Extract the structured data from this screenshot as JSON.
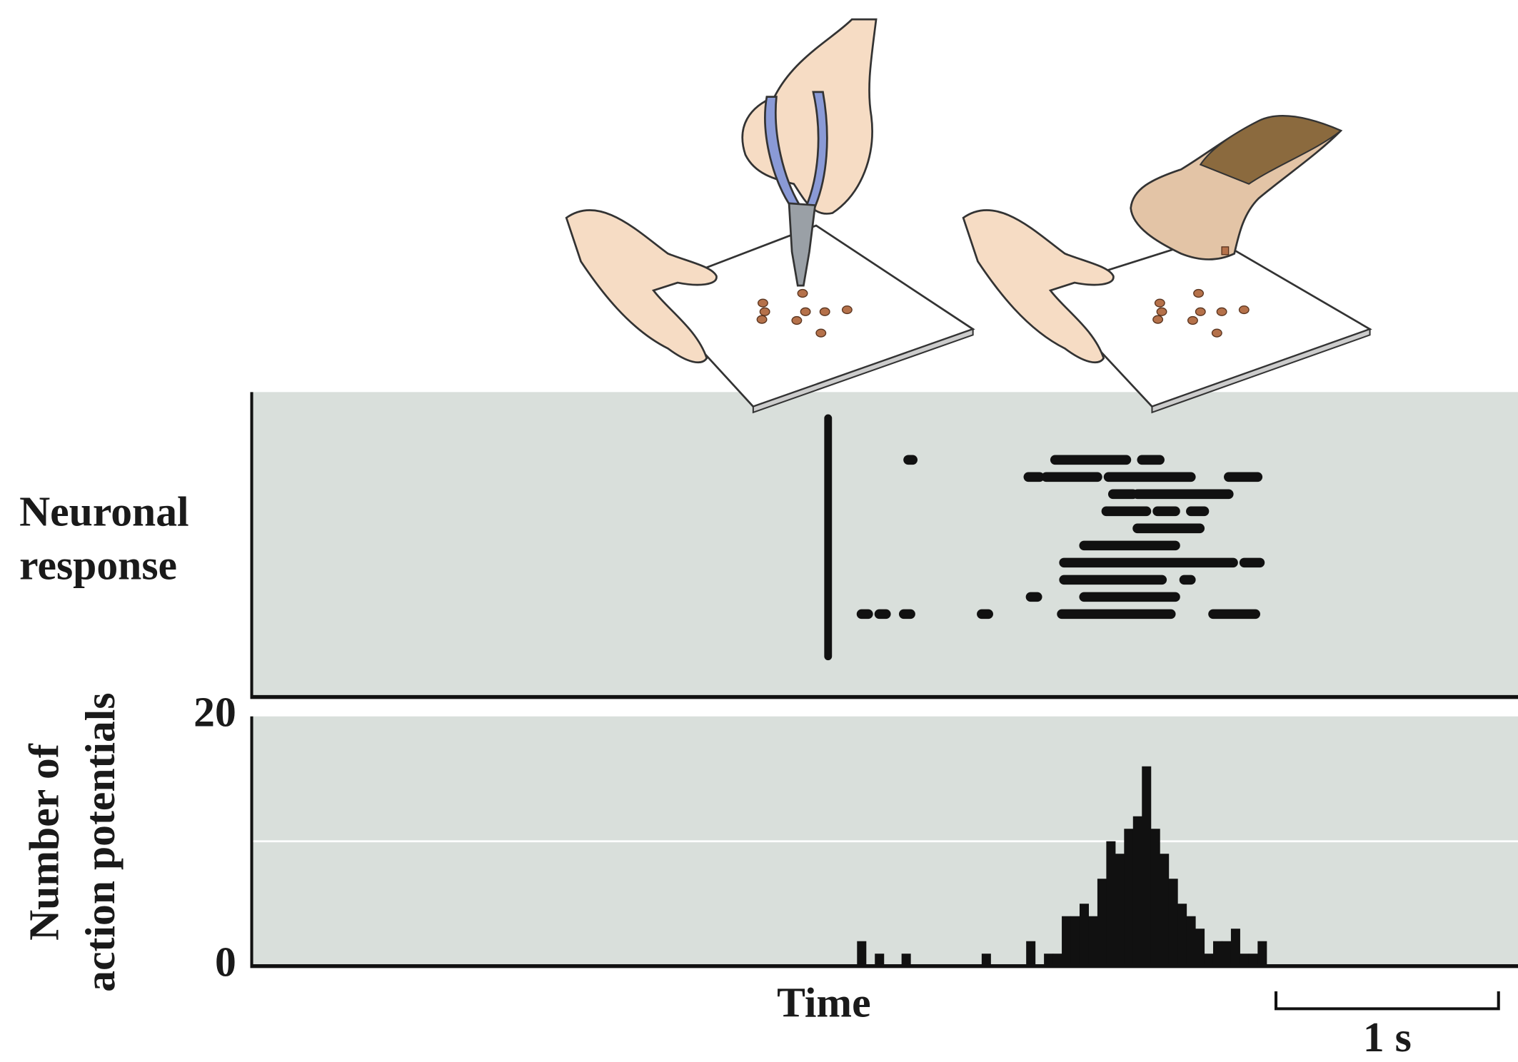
{
  "chart_data": [
    {
      "type": "raster",
      "ylabel_lines": [
        "Neuronal",
        "response"
      ],
      "xlim": [
        0,
        5.69
      ],
      "stimulus_time": 2.59,
      "color": "#111111",
      "background": "#d9dfdb",
      "trials": [
        [
          [
            2.95,
            2.97
          ],
          [
            3.61,
            3.93
          ],
          [
            4.0,
            4.08
          ]
        ],
        [
          [
            3.49,
            3.54
          ],
          [
            3.57,
            3.8
          ],
          [
            3.85,
            4.22
          ],
          [
            4.39,
            4.52
          ]
        ],
        [
          [
            3.87,
            3.96
          ],
          [
            3.98,
            4.39
          ]
        ],
        [
          [
            3.84,
            4.02
          ],
          [
            4.07,
            4.15
          ],
          [
            4.22,
            4.28
          ]
        ],
        [
          [
            3.98,
            4.26
          ]
        ],
        [
          [
            3.74,
            4.15
          ]
        ],
        [
          [
            3.65,
            4.41
          ],
          [
            4.46,
            4.53
          ]
        ],
        [
          [
            3.65,
            4.09
          ],
          [
            4.19,
            4.22
          ]
        ],
        [
          [
            3.5,
            3.53
          ],
          [
            3.74,
            4.15
          ]
        ],
        [
          [
            2.74,
            2.77
          ],
          [
            2.82,
            2.85
          ],
          [
            2.93,
            2.96
          ],
          [
            3.28,
            3.31
          ],
          [
            3.64,
            4.13
          ],
          [
            4.32,
            4.51
          ]
        ]
      ]
    },
    {
      "type": "histogram",
      "ylabel_lines": [
        "Number of",
        "action potentials"
      ],
      "xlabel": "Time",
      "xlim": [
        0,
        5.69
      ],
      "ylim": [
        0,
        20
      ],
      "yticks": [
        0,
        20
      ],
      "grid": [
        10
      ],
      "color": "#111111",
      "background": "#d9dfdb",
      "bins": [
        2.72,
        2.76,
        2.8,
        2.84,
        2.88,
        2.92,
        2.96,
        3.0,
        3.04,
        3.08,
        3.12,
        3.16,
        3.2,
        3.24,
        3.28,
        3.32,
        3.36,
        3.4,
        3.44,
        3.48,
        3.52,
        3.56,
        3.6,
        3.64,
        3.68,
        3.72,
        3.76,
        3.8,
        3.84,
        3.88,
        3.92,
        3.96,
        4.0,
        4.04,
        4.08,
        4.12,
        4.16,
        4.2,
        4.24,
        4.28,
        4.32,
        4.36,
        4.4,
        4.44,
        4.48,
        4.52,
        4.56
      ],
      "counts": [
        2,
        0,
        1,
        0,
        0,
        1,
        0,
        0,
        0,
        0,
        0,
        0,
        0,
        0,
        1,
        0,
        0,
        0,
        0,
        2,
        0,
        1,
        1,
        4,
        4,
        5,
        4,
        7,
        10,
        9,
        11,
        12,
        16,
        11,
        9,
        7,
        5,
        4,
        3,
        1,
        2,
        2,
        3,
        1,
        1,
        2
      ],
      "scale_bar": {
        "value": 1,
        "label": "1 s"
      }
    }
  ]
}
